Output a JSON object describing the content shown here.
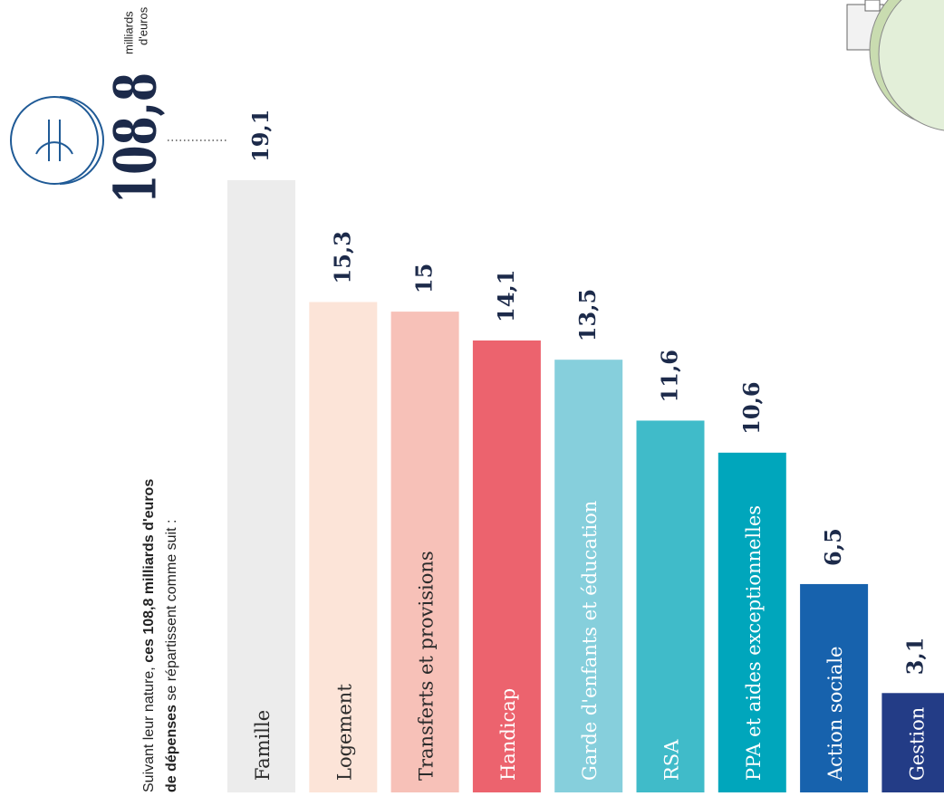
{
  "chart_data": {
    "type": "bar",
    "total_label": "108,8",
    "total_unit_lines": [
      "milliards",
      "d'euros"
    ],
    "intro_lines": [
      [
        {
          "text": "Suivant leur nature, ",
          "bold": false
        },
        {
          "text": "ces 108,8 milliards d'euros",
          "bold": true
        }
      ],
      [
        {
          "text": "de dépenses",
          "bold": true
        },
        {
          "text": " se répartissent comme suit :",
          "bold": false
        }
      ]
    ],
    "categories": [
      "Famille",
      "Logement",
      "Transferts et provisions",
      "Handicap",
      "Garde d'enfants et éducation",
      "RSA",
      "PPA et aides exceptionnelles",
      "Action sociale",
      "Gestion"
    ],
    "values": [
      19.1,
      15.3,
      15,
      14.1,
      13.5,
      11.6,
      10.6,
      6.5,
      3.1
    ],
    "value_labels": [
      "19,1",
      "15,3",
      "15",
      "14,1",
      "13,5",
      "11,6",
      "10,6",
      "6,5",
      "3,1"
    ],
    "colors": [
      "#ececec",
      "#fce4d8",
      "#f7c1b8",
      "#ec636e",
      "#86cfdc",
      "#40bbc9",
      "#00a6bc",
      "#1762ad",
      "#233c86"
    ],
    "label_colors": [
      "#2b2b2b",
      "#2b2b2b",
      "#2b2b2b",
      "#ffffff",
      "#ffffff",
      "#ffffff",
      "#ffffff",
      "#ffffff",
      "#ffffff"
    ]
  }
}
